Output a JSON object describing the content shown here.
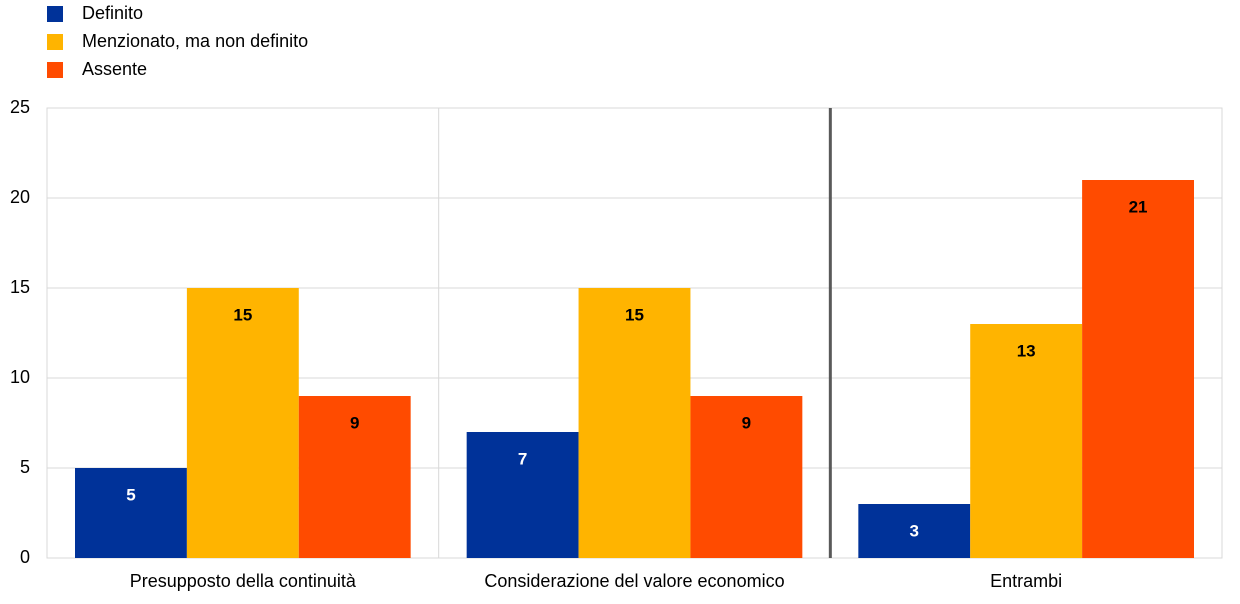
{
  "chart_data": {
    "type": "bar",
    "categories": [
      "Presupposto della continuità",
      "Considerazione del valore economico",
      "Entrambi"
    ],
    "series": [
      {
        "name": "Definito",
        "color": "#003299",
        "values": [
          5,
          7,
          3
        ]
      },
      {
        "name": "Menzionato, ma non definito",
        "color": "#ffb400",
        "values": [
          15,
          15,
          13
        ]
      },
      {
        "name": "Assente",
        "color": "#ff4b00",
        "values": [
          9,
          9,
          21
        ]
      }
    ],
    "ylim": [
      0,
      25
    ],
    "yticks": [
      0,
      5,
      10,
      15,
      20,
      25
    ],
    "grid": true,
    "legend": "top-left"
  }
}
